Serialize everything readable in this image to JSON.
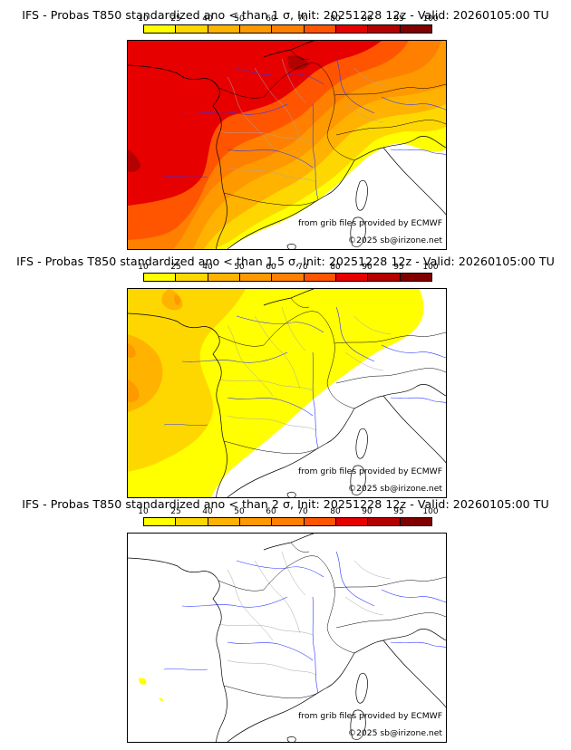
{
  "colorbar": {
    "ticks": [
      "10",
      "25",
      "40",
      "50",
      "60",
      "70",
      "80",
      "90",
      "95",
      "100"
    ],
    "colors": [
      "#ffff00",
      "#ffd700",
      "#ffb300",
      "#ff9900",
      "#ff7f00",
      "#ff5500",
      "#e60000",
      "#b30000",
      "#800000"
    ]
  },
  "panels": [
    {
      "title": "IFS - Probas T850  standardized ano < than 1 σ, Init: 20251228 12z - Valid: 20260105:00 TU"
    },
    {
      "title": "IFS - Probas T850  standardized ano < than 1.5 σ, Init: 20251228 12z - Valid: 20260105:00 TU"
    },
    {
      "title": "IFS - Probas T850  standardized ano < than 2 σ, Init: 20251228 12z - Valid: 20260105:00 TU"
    }
  ],
  "credits": {
    "source": "from grib files provided by ECMWF",
    "copyright": "©2025 sb@irizone.net"
  }
}
